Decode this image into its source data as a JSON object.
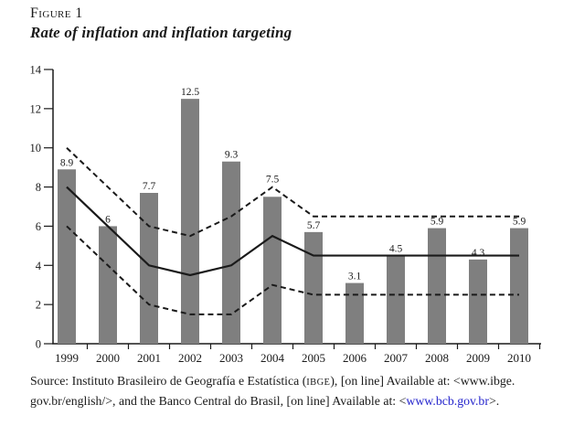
{
  "figure": {
    "label": "Figure 1",
    "title": "Rate of inflation and inflation targeting"
  },
  "chart_data": {
    "type": "bar",
    "title": "Figure 1",
    "subtitle": "Rate of inflation and inflation targeting",
    "categories": [
      "1999",
      "2000",
      "2001",
      "2002",
      "2003",
      "2004",
      "2005",
      "2006",
      "2007",
      "2008",
      "2009",
      "2010"
    ],
    "series": [
      {
        "name": "rate-of-inflation",
        "type": "bar",
        "values": [
          8.9,
          6,
          7.7,
          12.5,
          9.3,
          7.5,
          5.7,
          3.1,
          4.5,
          5.9,
          4.3,
          5.9
        ],
        "labels": [
          "8.9",
          "6",
          "7.7",
          "12.5",
          "9.3",
          "7.5",
          "5.7",
          "3.1",
          "4.5",
          "5.9",
          "4.3",
          "5.9"
        ]
      },
      {
        "name": "inflation-target",
        "type": "line-solid",
        "values": [
          8,
          6,
          4,
          3.5,
          4,
          5.5,
          4.5,
          4.5,
          4.5,
          4.5,
          4.5,
          4.5
        ]
      },
      {
        "name": "upper-tolerance-band",
        "type": "line-dashed",
        "values": [
          10,
          8,
          6,
          5.5,
          6.5,
          8,
          6.5,
          6.5,
          6.5,
          6.5,
          6.5,
          6.5
        ]
      },
      {
        "name": "lower-tolerance-band",
        "type": "line-dashed",
        "values": [
          6,
          4,
          2,
          1.5,
          1.5,
          3,
          2.5,
          2.5,
          2.5,
          2.5,
          2.5,
          2.5
        ]
      }
    ],
    "xlabel": "",
    "ylabel": "",
    "ylim": [
      0,
      14
    ],
    "yticks": [
      0,
      2,
      4,
      6,
      8,
      10,
      12,
      14
    ],
    "grid": false,
    "legend": false,
    "bar_color": "#7f7f7f",
    "line_color": "#1a1a1a"
  },
  "source": {
    "line1": {
      "pre": "Source: Instituto Brasileiro de Geografía e Estatística (",
      "sc": "IBGE",
      "post": "), [on line] Available at: <www.ibge."
    },
    "line2": {
      "pre": "gov.br/english/>, and the Banco Central do Brasil, [on line] Available at: <",
      "link": "www.bcb.gov.br",
      "post": ">."
    },
    "link_color": "#2222cc"
  }
}
